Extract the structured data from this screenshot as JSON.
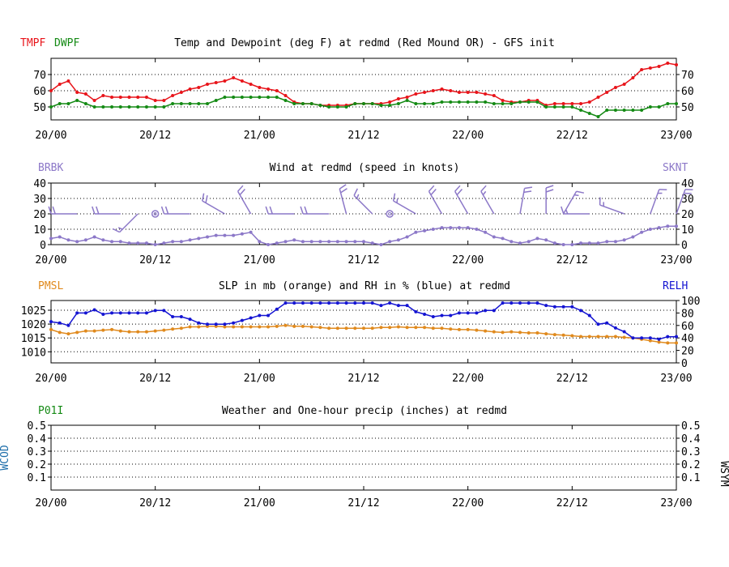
{
  "colors": {
    "red": "#e8141a",
    "green": "#148a14",
    "purple": "#8c78c8",
    "orange": "#e08a1e",
    "blue": "#1414d2",
    "weather_blue": "#1e6eaa",
    "axis": "#000000",
    "grid": "#000000"
  },
  "time_axis": {
    "ticks": [
      "20/00",
      "20/12",
      "21/00",
      "21/12",
      "22/00",
      "22/12",
      "23/00"
    ],
    "tick_hours": [
      0,
      12,
      24,
      36,
      48,
      60,
      72
    ]
  },
  "chart_data": [
    {
      "type": "line",
      "title": "Temp and Dewpoint (deg F) at redmd (Red Mound OR) - GFS init",
      "left_label_1": "TMPF",
      "left_label_2": "DWPF",
      "x_unit": "forecast hour",
      "ylim": [
        42,
        80
      ],
      "yticks": [
        50,
        60,
        70
      ],
      "grid": "horizontal dotted",
      "series": [
        {
          "name": "TMPF",
          "color": "red",
          "x": [
            0,
            1,
            2,
            3,
            4,
            5,
            6,
            7,
            8,
            9,
            10,
            11,
            12,
            13,
            14,
            15,
            16,
            17,
            18,
            19,
            20,
            21,
            22,
            23,
            24,
            25,
            26,
            27,
            28,
            29,
            30,
            31,
            32,
            33,
            34,
            35,
            36,
            37,
            38,
            39,
            40,
            41,
            42,
            43,
            44,
            45,
            46,
            47,
            48,
            49,
            50,
            51,
            52,
            53,
            54,
            55,
            56,
            57,
            58,
            59,
            60,
            61,
            62,
            63,
            64,
            65,
            66,
            67,
            68,
            69,
            70,
            71,
            72
          ],
          "values": [
            60,
            64,
            66,
            59,
            58,
            54,
            57,
            56,
            56,
            56,
            56,
            56,
            54,
            54,
            57,
            59,
            61,
            62,
            64,
            65,
            66,
            68,
            66,
            64,
            62,
            61,
            60,
            57,
            53,
            52,
            52,
            51,
            51,
            51,
            51,
            52,
            52,
            52,
            52,
            53,
            55,
            56,
            58,
            59,
            60,
            61,
            60,
            59,
            59,
            59,
            58,
            57,
            54,
            53,
            53,
            54,
            54,
            51,
            52,
            52,
            52,
            52,
            53,
            56,
            59,
            62,
            64,
            68,
            73,
            74,
            75,
            77,
            76
          ]
        },
        {
          "name": "DWPF",
          "color": "green",
          "x": [
            0,
            1,
            2,
            3,
            4,
            5,
            6,
            7,
            8,
            9,
            10,
            11,
            12,
            13,
            14,
            15,
            16,
            17,
            18,
            19,
            20,
            21,
            22,
            23,
            24,
            25,
            26,
            27,
            28,
            29,
            30,
            31,
            32,
            33,
            34,
            35,
            36,
            37,
            38,
            39,
            40,
            41,
            42,
            43,
            44,
            45,
            46,
            47,
            48,
            49,
            50,
            51,
            52,
            53,
            54,
            55,
            56,
            57,
            58,
            59,
            60,
            61,
            62,
            63,
            64,
            65,
            66,
            67,
            68,
            69,
            70,
            71,
            72
          ],
          "values": [
            50,
            52,
            52,
            54,
            52,
            50,
            50,
            50,
            50,
            50,
            50,
            50,
            50,
            50,
            52,
            52,
            52,
            52,
            52,
            54,
            56,
            56,
            56,
            56,
            56,
            56,
            56,
            54,
            52,
            52,
            52,
            51,
            50,
            50,
            50,
            52,
            52,
            52,
            51,
            51,
            52,
            54,
            52,
            52,
            52,
            53,
            53,
            53,
            53,
            53,
            53,
            52,
            52,
            52,
            53,
            53,
            53,
            50,
            50,
            50,
            50,
            48,
            46,
            44,
            48,
            48,
            48,
            48,
            48,
            50,
            50,
            52,
            52
          ]
        }
      ],
      "right_axis_ticks": [
        50,
        60,
        70
      ]
    },
    {
      "type": "line",
      "title": "Wind at  redmd (speed in knots)",
      "left_label": "BRBK",
      "right_label": "SKNT",
      "ylim": [
        0,
        40
      ],
      "yticks": [
        0,
        10,
        20,
        30,
        40
      ],
      "grid": "horizontal dotted",
      "series": [
        {
          "name": "SKNT",
          "color": "purple",
          "x": [
            0,
            1,
            2,
            3,
            4,
            5,
            6,
            7,
            8,
            9,
            10,
            11,
            12,
            13,
            14,
            15,
            16,
            17,
            18,
            19,
            20,
            21,
            22,
            23,
            24,
            25,
            26,
            27,
            28,
            29,
            30,
            31,
            32,
            33,
            34,
            35,
            36,
            37,
            38,
            39,
            40,
            41,
            42,
            43,
            44,
            45,
            46,
            47,
            48,
            49,
            50,
            51,
            52,
            53,
            54,
            55,
            56,
            57,
            58,
            59,
            60,
            61,
            62,
            63,
            64,
            65,
            66,
            67,
            68,
            69,
            70,
            71,
            72
          ],
          "values": [
            4,
            5,
            3,
            2,
            3,
            5,
            3,
            2,
            2,
            1,
            1,
            1,
            0,
            1,
            2,
            2,
            3,
            4,
            5,
            6,
            6,
            6,
            7,
            8,
            2,
            0,
            1,
            2,
            3,
            2,
            2,
            2,
            2,
            2,
            2,
            2,
            2,
            1,
            0,
            2,
            3,
            5,
            8,
            9,
            10,
            11,
            11,
            11,
            11,
            10,
            8,
            5,
            4,
            2,
            1,
            2,
            4,
            3,
            1,
            0,
            0,
            1,
            1,
            1,
            2,
            2,
            3,
            5,
            8,
            10,
            11,
            12,
            12
          ]
        }
      ],
      "barbs": [
        {
          "h": 3,
          "dir_from": 270,
          "kt": 20
        },
        {
          "h": 8,
          "dir_from": 270,
          "kt": 20
        },
        {
          "h": 10,
          "dir_from": 225,
          "kt": 15
        },
        {
          "h": 12,
          "calm": true
        },
        {
          "h": 16,
          "dir_from": 270,
          "kt": 20
        },
        {
          "h": 20,
          "dir_from": 300,
          "kt": 20
        },
        {
          "h": 23,
          "dir_from": 330,
          "kt": 20
        },
        {
          "h": 28,
          "dir_from": 270,
          "kt": 20
        },
        {
          "h": 32,
          "dir_from": 270,
          "kt": 20
        },
        {
          "h": 34,
          "dir_from": 345,
          "kt": 20
        },
        {
          "h": 37,
          "dir_from": 315,
          "kt": 15
        },
        {
          "h": 39,
          "calm": true
        },
        {
          "h": 42,
          "dir_from": 300,
          "kt": 15
        },
        {
          "h": 45,
          "dir_from": 330,
          "kt": 20
        },
        {
          "h": 48,
          "dir_from": 330,
          "kt": 20
        },
        {
          "h": 51,
          "dir_from": 330,
          "kt": 15
        },
        {
          "h": 54,
          "dir_from": 10,
          "kt": 20
        },
        {
          "h": 57,
          "dir_from": 0,
          "kt": 20
        },
        {
          "h": 59,
          "dir_from": 30,
          "kt": 15
        },
        {
          "h": 62,
          "dir_from": 270,
          "kt": 15
        },
        {
          "h": 66,
          "dir_from": 290,
          "kt": 15
        },
        {
          "h": 69,
          "dir_from": 20,
          "kt": 15
        },
        {
          "h": 72,
          "dir_from": 20,
          "kt": 20
        }
      ]
    },
    {
      "type": "line",
      "title": "SLP in mb (orange) and RH in % (blue) at  redmd",
      "left_label": "PMSL",
      "right_label": "RELH",
      "ylim": [
        1006,
        1028.5
      ],
      "yticks": [
        1010,
        1015,
        1020,
        1025
      ],
      "right_ylim": [
        0,
        100
      ],
      "right_yticks": [
        0,
        20,
        40,
        60,
        80,
        100
      ],
      "series": [
        {
          "name": "PMSL",
          "color": "orange",
          "axis": "left",
          "x": [
            0,
            1,
            2,
            3,
            4,
            5,
            6,
            7,
            8,
            9,
            10,
            11,
            12,
            13,
            14,
            15,
            16,
            17,
            18,
            19,
            20,
            21,
            22,
            23,
            24,
            25,
            26,
            27,
            28,
            29,
            30,
            31,
            32,
            33,
            34,
            35,
            36,
            37,
            38,
            39,
            40,
            41,
            42,
            43,
            44,
            45,
            46,
            47,
            48,
            49,
            50,
            51,
            52,
            53,
            54,
            55,
            56,
            57,
            58,
            59,
            60,
            61,
            62,
            63,
            64,
            65,
            66,
            67,
            68,
            69,
            70,
            71,
            72
          ],
          "values": [
            1018,
            1017,
            1016.5,
            1017,
            1017.5,
            1017.5,
            1017.8,
            1018,
            1017.5,
            1017.2,
            1017.2,
            1017.2,
            1017.5,
            1017.8,
            1018.2,
            1018.5,
            1019,
            1019,
            1019.2,
            1019.2,
            1019,
            1019,
            1019,
            1019,
            1019,
            1019,
            1019.2,
            1019.5,
            1019.2,
            1019.2,
            1019,
            1018.8,
            1018.5,
            1018.5,
            1018.5,
            1018.5,
            1018.5,
            1018.5,
            1018.8,
            1018.8,
            1019,
            1018.8,
            1018.8,
            1018.8,
            1018.5,
            1018.5,
            1018.2,
            1018,
            1018,
            1017.8,
            1017.5,
            1017.2,
            1017,
            1017.2,
            1017,
            1016.8,
            1016.8,
            1016.5,
            1016.2,
            1016,
            1015.8,
            1015.5,
            1015.5,
            1015.5,
            1015.5,
            1015.5,
            1015.2,
            1015,
            1014.5,
            1014,
            1013.5,
            1013.2,
            1013.2
          ]
        },
        {
          "name": "RELH",
          "color": "blue",
          "axis": "right",
          "x": [
            0,
            1,
            2,
            3,
            4,
            5,
            6,
            7,
            8,
            9,
            10,
            11,
            12,
            13,
            14,
            15,
            16,
            17,
            18,
            19,
            20,
            21,
            22,
            23,
            24,
            25,
            26,
            27,
            28,
            29,
            30,
            31,
            32,
            33,
            34,
            35,
            36,
            37,
            38,
            39,
            40,
            41,
            42,
            43,
            44,
            45,
            46,
            47,
            48,
            49,
            50,
            51,
            52,
            53,
            54,
            55,
            56,
            57,
            58,
            59,
            60,
            61,
            62,
            63,
            64,
            65,
            66,
            67,
            68,
            69,
            70,
            71,
            72
          ],
          "values": [
            66,
            64,
            60,
            80,
            80,
            85,
            78,
            80,
            80,
            80,
            80,
            80,
            84,
            84,
            74,
            74,
            70,
            64,
            62,
            62,
            62,
            64,
            68,
            72,
            76,
            76,
            86,
            96,
            96,
            96,
            96,
            96,
            96,
            96,
            96,
            96,
            96,
            96,
            92,
            96,
            92,
            92,
            82,
            78,
            74,
            76,
            76,
            80,
            80,
            80,
            84,
            84,
            96,
            96,
            96,
            96,
            96,
            92,
            90,
            90,
            90,
            84,
            76,
            62,
            64,
            56,
            50,
            40,
            40,
            40,
            38,
            42,
            42
          ]
        }
      ]
    },
    {
      "type": "line",
      "title": "Weather and One-hour precip (inches) at  redmd",
      "left_label": "P01I",
      "left_side_label": "WCOD",
      "right_side_label": "WSYM",
      "ylim": [
        0,
        0.5
      ],
      "yticks": [
        0.1,
        0.2,
        0.3,
        0.4,
        0.5
      ],
      "ytick_labels": [
        "0.1",
        "0.2",
        "0.3",
        "0.4",
        "0.5"
      ],
      "series": []
    }
  ]
}
